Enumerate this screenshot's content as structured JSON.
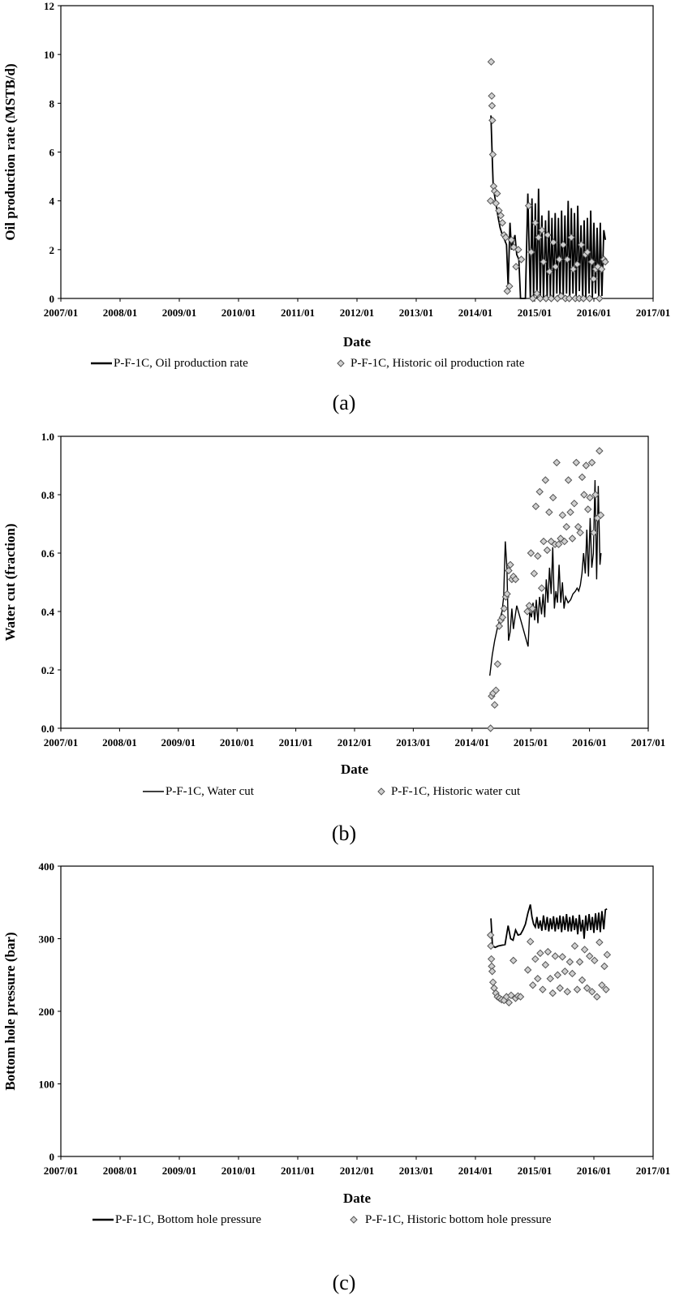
{
  "chart_data": [
    {
      "type": "line",
      "caption": "(a)",
      "xlabel": "Date",
      "ylabel": "Oil production rate (MSTB/d)",
      "x_tick_labels": [
        "2007/01",
        "2008/01",
        "2009/01",
        "2010/01",
        "2011/01",
        "2012/01",
        "2013/01",
        "2014/01",
        "2015/01",
        "2016/01",
        "2017/01"
      ],
      "y_ticks": [
        0,
        2,
        4,
        6,
        8,
        10,
        12
      ],
      "ylim": [
        0,
        12
      ],
      "xlim": [
        "2007/01",
        "2017/01"
      ],
      "legend_placement": "bottom",
      "series": [
        {
          "name": "P-F-1C, Oil production rate",
          "style": "line",
          "x": [
            "2014/04/05",
            "2014/04/12",
            "2014/04/20",
            "2014/04/28",
            "2014/05/08",
            "2014/05/20",
            "2014/06/01",
            "2014/06/15",
            "2014/06/29",
            "2014/07/10",
            "2014/07/20",
            "2014/08/01",
            "2014/08/10",
            "2014/08/20",
            "2014/09/01",
            "2014/09/12",
            "2014/09/25",
            "2014/10/05",
            "2014/10/15",
            "2014/10/25",
            "2014/11/05",
            "2014/11/20",
            "2014/12/05",
            "2014/12/15",
            "2014/12/25",
            "2015/01/05",
            "2015/01/15",
            "2015/01/25",
            "2015/02/05",
            "2015/02/15",
            "2015/02/25",
            "2015/03/07",
            "2015/03/17",
            "2015/03/27",
            "2015/04/06",
            "2015/04/16",
            "2015/04/26",
            "2015/05/06",
            "2015/05/16",
            "2015/05/26",
            "2015/06/05",
            "2015/06/15",
            "2015/06/25",
            "2015/07/05",
            "2015/07/15",
            "2015/07/25",
            "2015/08/04",
            "2015/08/14",
            "2015/08/24",
            "2015/09/03",
            "2015/09/13",
            "2015/09/23",
            "2015/10/03",
            "2015/10/13",
            "2015/10/23",
            "2015/11/02",
            "2015/11/12",
            "2015/11/22",
            "2015/12/02",
            "2015/12/12",
            "2015/12/22",
            "2016/01/01",
            "2016/01/11",
            "2016/01/21",
            "2016/01/31",
            "2016/02/10",
            "2016/02/20",
            "2016/03/01",
            "2016/03/11"
          ],
          "y": [
            7.5,
            6.0,
            4.5,
            4.2,
            3.8,
            3.3,
            2.9,
            2.6,
            2.4,
            2.2,
            0.5,
            3.1,
            2.0,
            2.3,
            2.6,
            1.8,
            1.6,
            0.0,
            0.0,
            0.0,
            0.0,
            4.3,
            0.0,
            4.1,
            0.0,
            3.9,
            0.0,
            4.5,
            0.0,
            3.4,
            0.0,
            3.2,
            0.0,
            3.6,
            0.1,
            3.3,
            0.0,
            3.5,
            0.2,
            3.3,
            0.0,
            3.6,
            0.0,
            3.4,
            0.2,
            4.0,
            0.0,
            3.7,
            0.2,
            3.5,
            0.0,
            3.8,
            0.3,
            3.0,
            0.0,
            3.2,
            0.0,
            3.3,
            0.2,
            3.6,
            0.0,
            3.1,
            0.2,
            2.9,
            0.0,
            3.1,
            0.1,
            2.8,
            2.4
          ]
        },
        {
          "name": "P-F-1C, Historic oil production rate",
          "style": "markers",
          "x": [
            "2014/04/03",
            "2014/04/07",
            "2014/04/10",
            "2014/04/12",
            "2014/04/14",
            "2014/04/17",
            "2014/04/22",
            "2014/04/28",
            "2014/05/06",
            "2014/05/13",
            "2014/05/24",
            "2014/06/05",
            "2014/06/15",
            "2014/06/25",
            "2014/07/05",
            "2014/07/15",
            "2014/07/28",
            "2014/08/10",
            "2014/08/24",
            "2014/09/08",
            "2014/09/22",
            "2014/10/10",
            "2014/11/25",
            "2014/12/10",
            "2014/12/20",
            "2015/01/05",
            "2015/01/15",
            "2015/01/25",
            "2015/02/05",
            "2015/02/15",
            "2015/02/25",
            "2015/03/10",
            "2015/03/20",
            "2015/04/01",
            "2015/04/12",
            "2015/04/25",
            "2015/05/08",
            "2015/05/20",
            "2015/06/01",
            "2015/06/12",
            "2015/06/25",
            "2015/07/08",
            "2015/07/20",
            "2015/08/01",
            "2015/08/14",
            "2015/08/26",
            "2015/09/08",
            "2015/09/20",
            "2015/10/02",
            "2015/10/15",
            "2015/10/28",
            "2015/11/10",
            "2015/11/22",
            "2015/12/05",
            "2015/12/18",
            "2015/12/30",
            "2016/01/12",
            "2016/01/25",
            "2016/02/05",
            "2016/02/18",
            "2016/03/01",
            "2016/03/10"
          ],
          "y": [
            4.0,
            9.7,
            8.3,
            7.9,
            7.3,
            5.9,
            4.6,
            4.4,
            3.9,
            4.3,
            3.6,
            3.4,
            3.1,
            2.6,
            2.5,
            0.3,
            0.5,
            2.4,
            2.1,
            1.3,
            2.0,
            1.6,
            3.8,
            1.9,
            0.0,
            3.1,
            0.2,
            2.5,
            0.0,
            2.8,
            1.5,
            0.0,
            2.6,
            1.1,
            0.0,
            2.3,
            1.3,
            0.0,
            1.6,
            0.1,
            2.2,
            0.0,
            1.6,
            0.0,
            2.5,
            1.2,
            0.0,
            1.4,
            0.0,
            2.2,
            0.0,
            1.8,
            1.9,
            0.0,
            1.5,
            0.8,
            1.2,
            1.3,
            0.0,
            1.2,
            1.6,
            1.5
          ]
        }
      ]
    },
    {
      "type": "line",
      "caption": "(b)",
      "xlabel": "Date",
      "ylabel": "Water cut (fraction)",
      "x_tick_labels": [
        "2007/01",
        "2008/01",
        "2009/01",
        "2010/01",
        "2011/01",
        "2012/01",
        "2013/01",
        "2014/01",
        "2015/01",
        "2016/01",
        "2017/01"
      ],
      "y_ticks": [
        0.0,
        0.2,
        0.4,
        0.6,
        0.8,
        1.0
      ],
      "ylim": [
        0,
        1
      ],
      "xlim": [
        "2007/01",
        "2017/01"
      ],
      "legend_placement": "bottom",
      "series": [
        {
          "name": "P-F-1C, Water cut",
          "style": "line",
          "x": [
            "2014/04/20",
            "2014/05/05",
            "2014/05/20",
            "2014/06/05",
            "2014/06/20",
            "2014/07/05",
            "2014/07/15",
            "2014/07/25",
            "2014/08/05",
            "2014/08/15",
            "2014/08/25",
            "2014/09/05",
            "2014/09/15",
            "2014/09/25",
            "2014/10/05",
            "2014/12/15",
            "2014/12/25",
            "2015/01/05",
            "2015/01/15",
            "2015/01/25",
            "2015/02/05",
            "2015/02/15",
            "2015/02/25",
            "2015/03/07",
            "2015/03/17",
            "2015/03/27",
            "2015/04/06",
            "2015/04/16",
            "2015/04/26",
            "2015/05/06",
            "2015/05/16",
            "2015/05/26",
            "2015/06/05",
            "2015/06/15",
            "2015/06/25",
            "2015/07/05",
            "2015/07/15",
            "2015/07/25",
            "2015/08/05",
            "2015/08/20",
            "2015/09/05",
            "2015/09/20",
            "2015/10/05",
            "2015/10/15",
            "2015/10/25",
            "2015/11/05",
            "2015/11/15",
            "2015/11/25",
            "2015/12/05",
            "2015/12/15",
            "2015/12/25",
            "2016/01/05",
            "2016/01/15",
            "2016/01/25",
            "2016/02/05",
            "2016/02/15",
            "2016/02/25",
            "2016/03/05",
            "2016/03/12"
          ],
          "y": [
            0.18,
            0.25,
            0.3,
            0.34,
            0.37,
            0.4,
            0.45,
            0.64,
            0.55,
            0.3,
            0.33,
            0.41,
            0.34,
            0.38,
            0.42,
            0.28,
            0.4,
            0.38,
            0.43,
            0.37,
            0.44,
            0.36,
            0.45,
            0.39,
            0.46,
            0.38,
            0.51,
            0.43,
            0.55,
            0.46,
            0.62,
            0.41,
            0.47,
            0.43,
            0.56,
            0.43,
            0.5,
            0.41,
            0.45,
            0.43,
            0.44,
            0.46,
            0.47,
            0.48,
            0.47,
            0.49,
            0.53,
            0.6,
            0.53,
            0.68,
            0.52,
            0.72,
            0.55,
            0.6,
            0.85,
            0.51,
            0.83,
            0.56,
            0.6
          ]
        },
        {
          "name": "P-F-1C, Historic water cut",
          "style": "markers",
          "x": [
            "2014/04/25",
            "2014/05/01",
            "2014/05/10",
            "2014/05/20",
            "2014/05/28",
            "2014/06/08",
            "2014/06/18",
            "2014/06/28",
            "2014/07/08",
            "2014/07/18",
            "2014/07/28",
            "2014/08/06",
            "2014/08/16",
            "2014/08/26",
            "2014/09/05",
            "2014/09/15",
            "2014/09/28",
            "2014/12/10",
            "2014/12/22",
            "2015/01/02",
            "2015/01/12",
            "2015/01/22",
            "2015/02/02",
            "2015/02/14",
            "2015/02/26",
            "2015/03/08",
            "2015/03/20",
            "2015/04/01",
            "2015/04/12",
            "2015/04/24",
            "2015/05/06",
            "2015/05/18",
            "2015/05/30",
            "2015/06/10",
            "2015/06/22",
            "2015/07/04",
            "2015/07/16",
            "2015/07/28",
            "2015/08/10",
            "2015/08/22",
            "2015/09/04",
            "2015/09/16",
            "2015/09/28",
            "2015/10/10",
            "2015/10/22",
            "2015/11/04",
            "2015/11/16",
            "2015/11/28",
            "2015/12/10",
            "2015/12/22",
            "2016/01/04",
            "2016/01/16",
            "2016/01/28",
            "2016/02/08",
            "2016/02/20",
            "2016/03/02",
            "2016/03/10"
          ],
          "y": [
            0.0,
            0.11,
            0.12,
            0.08,
            0.13,
            0.22,
            0.35,
            0.37,
            0.38,
            0.41,
            0.45,
            0.46,
            0.54,
            0.56,
            0.51,
            0.52,
            0.51,
            0.4,
            0.42,
            0.6,
            0.41,
            0.53,
            0.76,
            0.59,
            0.81,
            0.48,
            0.64,
            0.85,
            0.61,
            0.74,
            0.64,
            0.79,
            0.63,
            0.91,
            0.63,
            0.65,
            0.73,
            0.64,
            0.69,
            0.85,
            0.74,
            0.65,
            0.77,
            0.91,
            0.69,
            0.67,
            0.86,
            0.8,
            0.9,
            0.75,
            0.79,
            0.91,
            0.67,
            0.8,
            0.72,
            0.95,
            0.73
          ]
        }
      ]
    },
    {
      "type": "line",
      "caption": "(c)",
      "xlabel": "Date",
      "ylabel": "Bottom hole pressure (bar)",
      "x_tick_labels": [
        "2007/01",
        "2008/01",
        "2009/01",
        "2010/01",
        "2011/01",
        "2012/01",
        "2013/01",
        "2014/01",
        "2015/01",
        "2016/01",
        "2017/01"
      ],
      "y_ticks": [
        0,
        100,
        200,
        300,
        400
      ],
      "ylim": [
        0,
        400
      ],
      "xlim": [
        "2007/01",
        "2017/01"
      ],
      "legend_placement": "bottom",
      "series": [
        {
          "name": "P-F-1C, Bottom hole pressure",
          "style": "line",
          "x": [
            "2014/04/05",
            "2014/04/15",
            "2014/05/01",
            "2014/05/20",
            "2014/06/10",
            "2014/07/01",
            "2014/07/20",
            "2014/08/05",
            "2014/08/20",
            "2014/09/05",
            "2014/09/20",
            "2014/10/05",
            "2014/10/20",
            "2014/11/05",
            "2014/11/20",
            "2014/12/05",
            "2014/12/15",
            "2014/12/25",
            "2015/01/05",
            "2015/01/15",
            "2015/01/25",
            "2015/02/05",
            "2015/02/15",
            "2015/02/25",
            "2015/03/07",
            "2015/03/17",
            "2015/03/27",
            "2015/04/06",
            "2015/04/16",
            "2015/04/26",
            "2015/05/06",
            "2015/05/16",
            "2015/05/26",
            "2015/06/05",
            "2015/06/15",
            "2015/06/25",
            "2015/07/05",
            "2015/07/15",
            "2015/07/25",
            "2015/08/04",
            "2015/08/14",
            "2015/08/24",
            "2015/09/03",
            "2015/09/13",
            "2015/09/23",
            "2015/10/03",
            "2015/10/13",
            "2015/10/23",
            "2015/11/02",
            "2015/11/12",
            "2015/11/22",
            "2015/12/02",
            "2015/12/12",
            "2015/12/22",
            "2016/01/01",
            "2016/01/11",
            "2016/01/21",
            "2016/01/31",
            "2016/02/10",
            "2016/02/20",
            "2016/03/01",
            "2016/03/11",
            "2016/03/21"
          ],
          "y": [
            328,
            290,
            288,
            290,
            291,
            292,
            318,
            300,
            298,
            312,
            305,
            306,
            312,
            320,
            335,
            347,
            330,
            320,
            316,
            330,
            314,
            325,
            311,
            332,
            312,
            330,
            310,
            328,
            313,
            331,
            310,
            329,
            313,
            332,
            309,
            331,
            312,
            334,
            310,
            330,
            310,
            332,
            312,
            328,
            306,
            333,
            310,
            326,
            300,
            332,
            311,
            334,
            312,
            330,
            308,
            335,
            312,
            336,
            309,
            338,
            313,
            340,
            341
          ]
        },
        {
          "name": "P-F-1C, Historic bottom hole pressure",
          "style": "markers",
          "x": [
            "2014/04/03",
            "2014/04/05",
            "2014/04/08",
            "2014/04/10",
            "2014/04/13",
            "2014/04/18",
            "2014/04/25",
            "2014/05/05",
            "2014/05/15",
            "2014/05/28",
            "2014/06/10",
            "2014/06/25",
            "2014/07/10",
            "2014/07/25",
            "2014/08/08",
            "2014/08/22",
            "2014/09/05",
            "2014/09/20",
            "2014/10/05",
            "2014/11/20",
            "2014/12/05",
            "2014/12/20",
            "2015/01/05",
            "2015/01/20",
            "2015/02/05",
            "2015/02/20",
            "2015/03/07",
            "2015/03/22",
            "2015/04/06",
            "2015/04/21",
            "2015/05/06",
            "2015/05/21",
            "2015/06/05",
            "2015/06/20",
            "2015/07/05",
            "2015/07/20",
            "2015/08/05",
            "2015/08/20",
            "2015/09/05",
            "2015/09/20",
            "2015/10/05",
            "2015/10/20",
            "2015/11/05",
            "2015/11/20",
            "2015/12/05",
            "2015/12/20",
            "2016/01/05",
            "2016/01/20",
            "2016/02/05",
            "2016/02/20",
            "2016/03/05",
            "2016/03/15",
            "2016/03/22"
          ],
          "y": [
            305,
            290,
            272,
            262,
            255,
            240,
            232,
            225,
            220,
            218,
            216,
            215,
            220,
            212,
            222,
            270,
            218,
            221,
            220,
            257,
            296,
            236,
            272,
            245,
            280,
            230,
            264,
            282,
            245,
            225,
            276,
            250,
            232,
            275,
            255,
            227,
            268,
            252,
            290,
            230,
            268,
            243,
            285,
            232,
            276,
            227,
            270,
            220,
            295,
            236,
            262,
            230,
            278
          ]
        }
      ]
    }
  ]
}
